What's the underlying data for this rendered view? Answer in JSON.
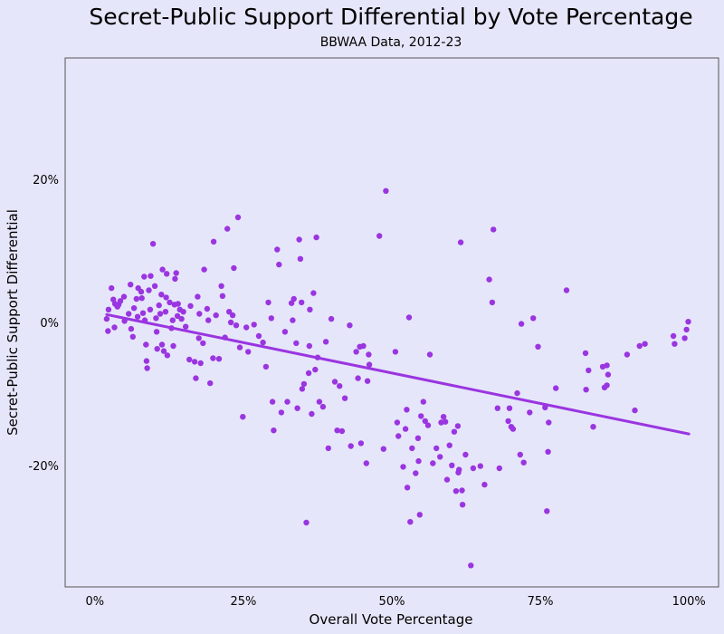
{
  "chart_data": {
    "type": "scatter",
    "title": "Secret-Public Support Differential by Vote Percentage",
    "subtitle": "BBWAA Data, 2012-23",
    "xlabel": "Overall Vote Percentage",
    "ylabel": "Secret-Public Support Differential",
    "xlim": [
      -5,
      105
    ],
    "ylim": [
      -37,
      37
    ],
    "x_ticks": [
      0,
      25,
      50,
      75,
      100
    ],
    "x_tick_labels": [
      "0%",
      "25%",
      "50%",
      "75%",
      "100%"
    ],
    "y_ticks": [
      -20,
      0,
      20
    ],
    "y_tick_labels": [
      "-20%",
      "0%",
      "20%"
    ],
    "grid": false,
    "colors": {
      "points": "#9a35e0",
      "trendline": "#9a35e0",
      "background": "#e6e6fa",
      "frame": "#555555"
    },
    "trendline": {
      "x": [
        2,
        100
      ],
      "y": [
        1.1,
        -15.6
      ]
    },
    "points": [
      [
        2.0,
        0.5
      ],
      [
        2.3,
        1.8
      ],
      [
        2.2,
        -1.2
      ],
      [
        2.8,
        4.8
      ],
      [
        3.1,
        3.2
      ],
      [
        3.4,
        2.6
      ],
      [
        3.3,
        -0.7
      ],
      [
        3.8,
        2.2
      ],
      [
        4.0,
        2.5
      ],
      [
        4.3,
        3.0
      ],
      [
        4.9,
        3.6
      ],
      [
        5.0,
        0.2
      ],
      [
        5.7,
        1.2
      ],
      [
        6.0,
        5.3
      ],
      [
        6.1,
        -0.9
      ],
      [
        6.4,
        -2.0
      ],
      [
        6.6,
        2.0
      ],
      [
        7.0,
        3.3
      ],
      [
        7.3,
        4.8
      ],
      [
        7.2,
        0.8
      ],
      [
        7.8,
        4.3
      ],
      [
        7.9,
        3.4
      ],
      [
        8.1,
        1.3
      ],
      [
        8.3,
        6.4
      ],
      [
        8.4,
        0.3
      ],
      [
        8.6,
        -3.1
      ],
      [
        8.7,
        -5.4
      ],
      [
        8.8,
        -6.4
      ],
      [
        9.1,
        4.5
      ],
      [
        9.3,
        1.8
      ],
      [
        9.4,
        6.5
      ],
      [
        9.8,
        11.0
      ],
      [
        10.1,
        5.1
      ],
      [
        10.3,
        0.6
      ],
      [
        10.4,
        -1.3
      ],
      [
        10.5,
        -3.7
      ],
      [
        10.8,
        2.4
      ],
      [
        11.0,
        1.2
      ],
      [
        11.2,
        3.9
      ],
      [
        11.4,
        7.4
      ],
      [
        11.3,
        -3.1
      ],
      [
        11.6,
        -4.0
      ],
      [
        11.9,
        1.5
      ],
      [
        12.0,
        3.5
      ],
      [
        12.1,
        6.8
      ],
      [
        12.2,
        -4.6
      ],
      [
        12.6,
        2.8
      ],
      [
        12.9,
        -0.8
      ],
      [
        13.1,
        0.3
      ],
      [
        13.2,
        -3.3
      ],
      [
        13.4,
        2.5
      ],
      [
        13.5,
        6.1
      ],
      [
        13.7,
        6.9
      ],
      [
        13.9,
        0.9
      ],
      [
        14.0,
        2.6
      ],
      [
        14.3,
        1.8
      ],
      [
        14.6,
        0.5
      ],
      [
        14.9,
        1.5
      ],
      [
        15.3,
        -0.6
      ],
      [
        15.9,
        -5.2
      ],
      [
        16.1,
        2.3
      ],
      [
        16.8,
        -5.5
      ],
      [
        17.0,
        -7.8
      ],
      [
        17.3,
        3.6
      ],
      [
        17.5,
        -2.2
      ],
      [
        17.6,
        1.2
      ],
      [
        17.8,
        -5.7
      ],
      [
        18.2,
        -2.9
      ],
      [
        18.4,
        7.4
      ],
      [
        18.9,
        1.9
      ],
      [
        19.1,
        0.3
      ],
      [
        19.4,
        -8.5
      ],
      [
        19.9,
        -5.0
      ],
      [
        20.0,
        11.3
      ],
      [
        20.4,
        1.0
      ],
      [
        20.9,
        -5.1
      ],
      [
        21.3,
        5.1
      ],
      [
        21.5,
        3.7
      ],
      [
        21.9,
        -2.1
      ],
      [
        22.3,
        13.1
      ],
      [
        22.6,
        1.5
      ],
      [
        22.9,
        0.0
      ],
      [
        23.2,
        1.0
      ],
      [
        23.4,
        7.6
      ],
      [
        23.8,
        -0.4
      ],
      [
        24.1,
        14.7
      ],
      [
        24.4,
        -3.5
      ],
      [
        24.9,
        -13.2
      ],
      [
        25.5,
        -0.7
      ],
      [
        25.8,
        -4.1
      ],
      [
        26.8,
        -0.3
      ],
      [
        27.6,
        -1.9
      ],
      [
        28.3,
        -2.8
      ],
      [
        28.8,
        -6.2
      ],
      [
        29.2,
        2.8
      ],
      [
        29.7,
        0.6
      ],
      [
        29.9,
        -11.1
      ],
      [
        30.1,
        -15.1
      ],
      [
        30.7,
        10.2
      ],
      [
        31.0,
        8.1
      ],
      [
        31.4,
        -12.6
      ],
      [
        32.0,
        -1.3
      ],
      [
        32.4,
        -11.1
      ],
      [
        33.1,
        2.7
      ],
      [
        33.3,
        0.3
      ],
      [
        33.5,
        3.3
      ],
      [
        33.9,
        -2.9
      ],
      [
        34.1,
        -12.0
      ],
      [
        34.4,
        11.6
      ],
      [
        34.6,
        8.9
      ],
      [
        34.8,
        2.8
      ],
      [
        34.9,
        -9.3
      ],
      [
        35.2,
        -8.6
      ],
      [
        35.6,
        -28.0
      ],
      [
        36.0,
        -7.1
      ],
      [
        36.1,
        -3.3
      ],
      [
        36.2,
        1.8
      ],
      [
        36.5,
        -12.8
      ],
      [
        36.8,
        4.1
      ],
      [
        37.1,
        -6.6
      ],
      [
        37.3,
        11.9
      ],
      [
        37.5,
        -4.9
      ],
      [
        37.8,
        -11.1
      ],
      [
        38.4,
        -11.8
      ],
      [
        38.9,
        -2.7
      ],
      [
        39.3,
        -17.6
      ],
      [
        39.8,
        0.5
      ],
      [
        40.4,
        -8.3
      ],
      [
        40.8,
        -15.1
      ],
      [
        41.2,
        -8.9
      ],
      [
        41.6,
        -15.2
      ],
      [
        42.1,
        -10.6
      ],
      [
        42.9,
        -0.4
      ],
      [
        43.1,
        -17.3
      ],
      [
        44.0,
        -4.1
      ],
      [
        44.3,
        -7.8
      ],
      [
        44.6,
        -3.4
      ],
      [
        44.8,
        -16.9
      ],
      [
        45.2,
        -3.3
      ],
      [
        45.7,
        -19.7
      ],
      [
        45.9,
        -8.2
      ],
      [
        46.1,
        -4.5
      ],
      [
        46.2,
        -5.9
      ],
      [
        47.9,
        12.1
      ],
      [
        48.6,
        -17.7
      ],
      [
        49.0,
        18.4
      ],
      [
        50.6,
        -4.1
      ],
      [
        50.9,
        -14.0
      ],
      [
        51.1,
        -15.9
      ],
      [
        51.9,
        -20.2
      ],
      [
        52.3,
        -14.9
      ],
      [
        52.5,
        -12.2
      ],
      [
        52.6,
        -23.1
      ],
      [
        52.9,
        0.7
      ],
      [
        53.1,
        -27.9
      ],
      [
        53.4,
        -17.6
      ],
      [
        54.0,
        -21.1
      ],
      [
        54.4,
        -16.2
      ],
      [
        54.5,
        -19.4
      ],
      [
        54.7,
        -26.9
      ],
      [
        54.9,
        -13.1
      ],
      [
        55.3,
        -11.1
      ],
      [
        55.6,
        -13.8
      ],
      [
        56.1,
        -14.4
      ],
      [
        56.4,
        -4.5
      ],
      [
        56.9,
        -19.7
      ],
      [
        57.5,
        -17.6
      ],
      [
        58.1,
        -18.8
      ],
      [
        58.3,
        -14.0
      ],
      [
        58.7,
        -13.2
      ],
      [
        59.0,
        -13.9
      ],
      [
        59.3,
        -22.0
      ],
      [
        59.7,
        -17.2
      ],
      [
        60.1,
        -20.0
      ],
      [
        60.5,
        -15.3
      ],
      [
        60.8,
        -23.6
      ],
      [
        61.1,
        -14.5
      ],
      [
        61.2,
        -21.0
      ],
      [
        61.3,
        -20.6
      ],
      [
        61.6,
        11.2
      ],
      [
        61.8,
        -23.5
      ],
      [
        61.9,
        -25.5
      ],
      [
        62.4,
        -18.5
      ],
      [
        63.3,
        -34.0
      ],
      [
        63.7,
        -20.4
      ],
      [
        64.9,
        -20.1
      ],
      [
        65.6,
        -22.7
      ],
      [
        66.4,
        6.0
      ],
      [
        66.9,
        2.8
      ],
      [
        67.1,
        13.0
      ],
      [
        67.8,
        -12.0
      ],
      [
        68.1,
        -20.4
      ],
      [
        69.6,
        -13.8
      ],
      [
        69.8,
        -12.0
      ],
      [
        70.1,
        -14.6
      ],
      [
        70.4,
        -14.9
      ],
      [
        71.1,
        -9.9
      ],
      [
        71.6,
        -18.5
      ],
      [
        71.8,
        -0.2
      ],
      [
        72.2,
        -19.6
      ],
      [
        73.2,
        -12.6
      ],
      [
        73.8,
        0.6
      ],
      [
        74.6,
        -3.4
      ],
      [
        75.8,
        -11.9
      ],
      [
        76.1,
        -26.4
      ],
      [
        76.3,
        -18.1
      ],
      [
        76.4,
        -14.0
      ],
      [
        77.6,
        -9.2
      ],
      [
        79.4,
        4.5
      ],
      [
        82.7,
        -9.4
      ],
      [
        82.6,
        -4.3
      ],
      [
        83.1,
        -6.7
      ],
      [
        83.9,
        -14.6
      ],
      [
        85.5,
        -6.2
      ],
      [
        85.8,
        -9.1
      ],
      [
        86.2,
        -6.0
      ],
      [
        86.4,
        -7.3
      ],
      [
        86.2,
        -8.8
      ],
      [
        89.6,
        -4.5
      ],
      [
        90.9,
        -12.3
      ],
      [
        91.7,
        -3.3
      ],
      [
        92.6,
        -3.0
      ],
      [
        97.4,
        -1.9
      ],
      [
        97.6,
        -3.0
      ],
      [
        99.3,
        -2.2
      ],
      [
        99.6,
        -1.0
      ],
      [
        99.9,
        0.1
      ]
    ]
  }
}
